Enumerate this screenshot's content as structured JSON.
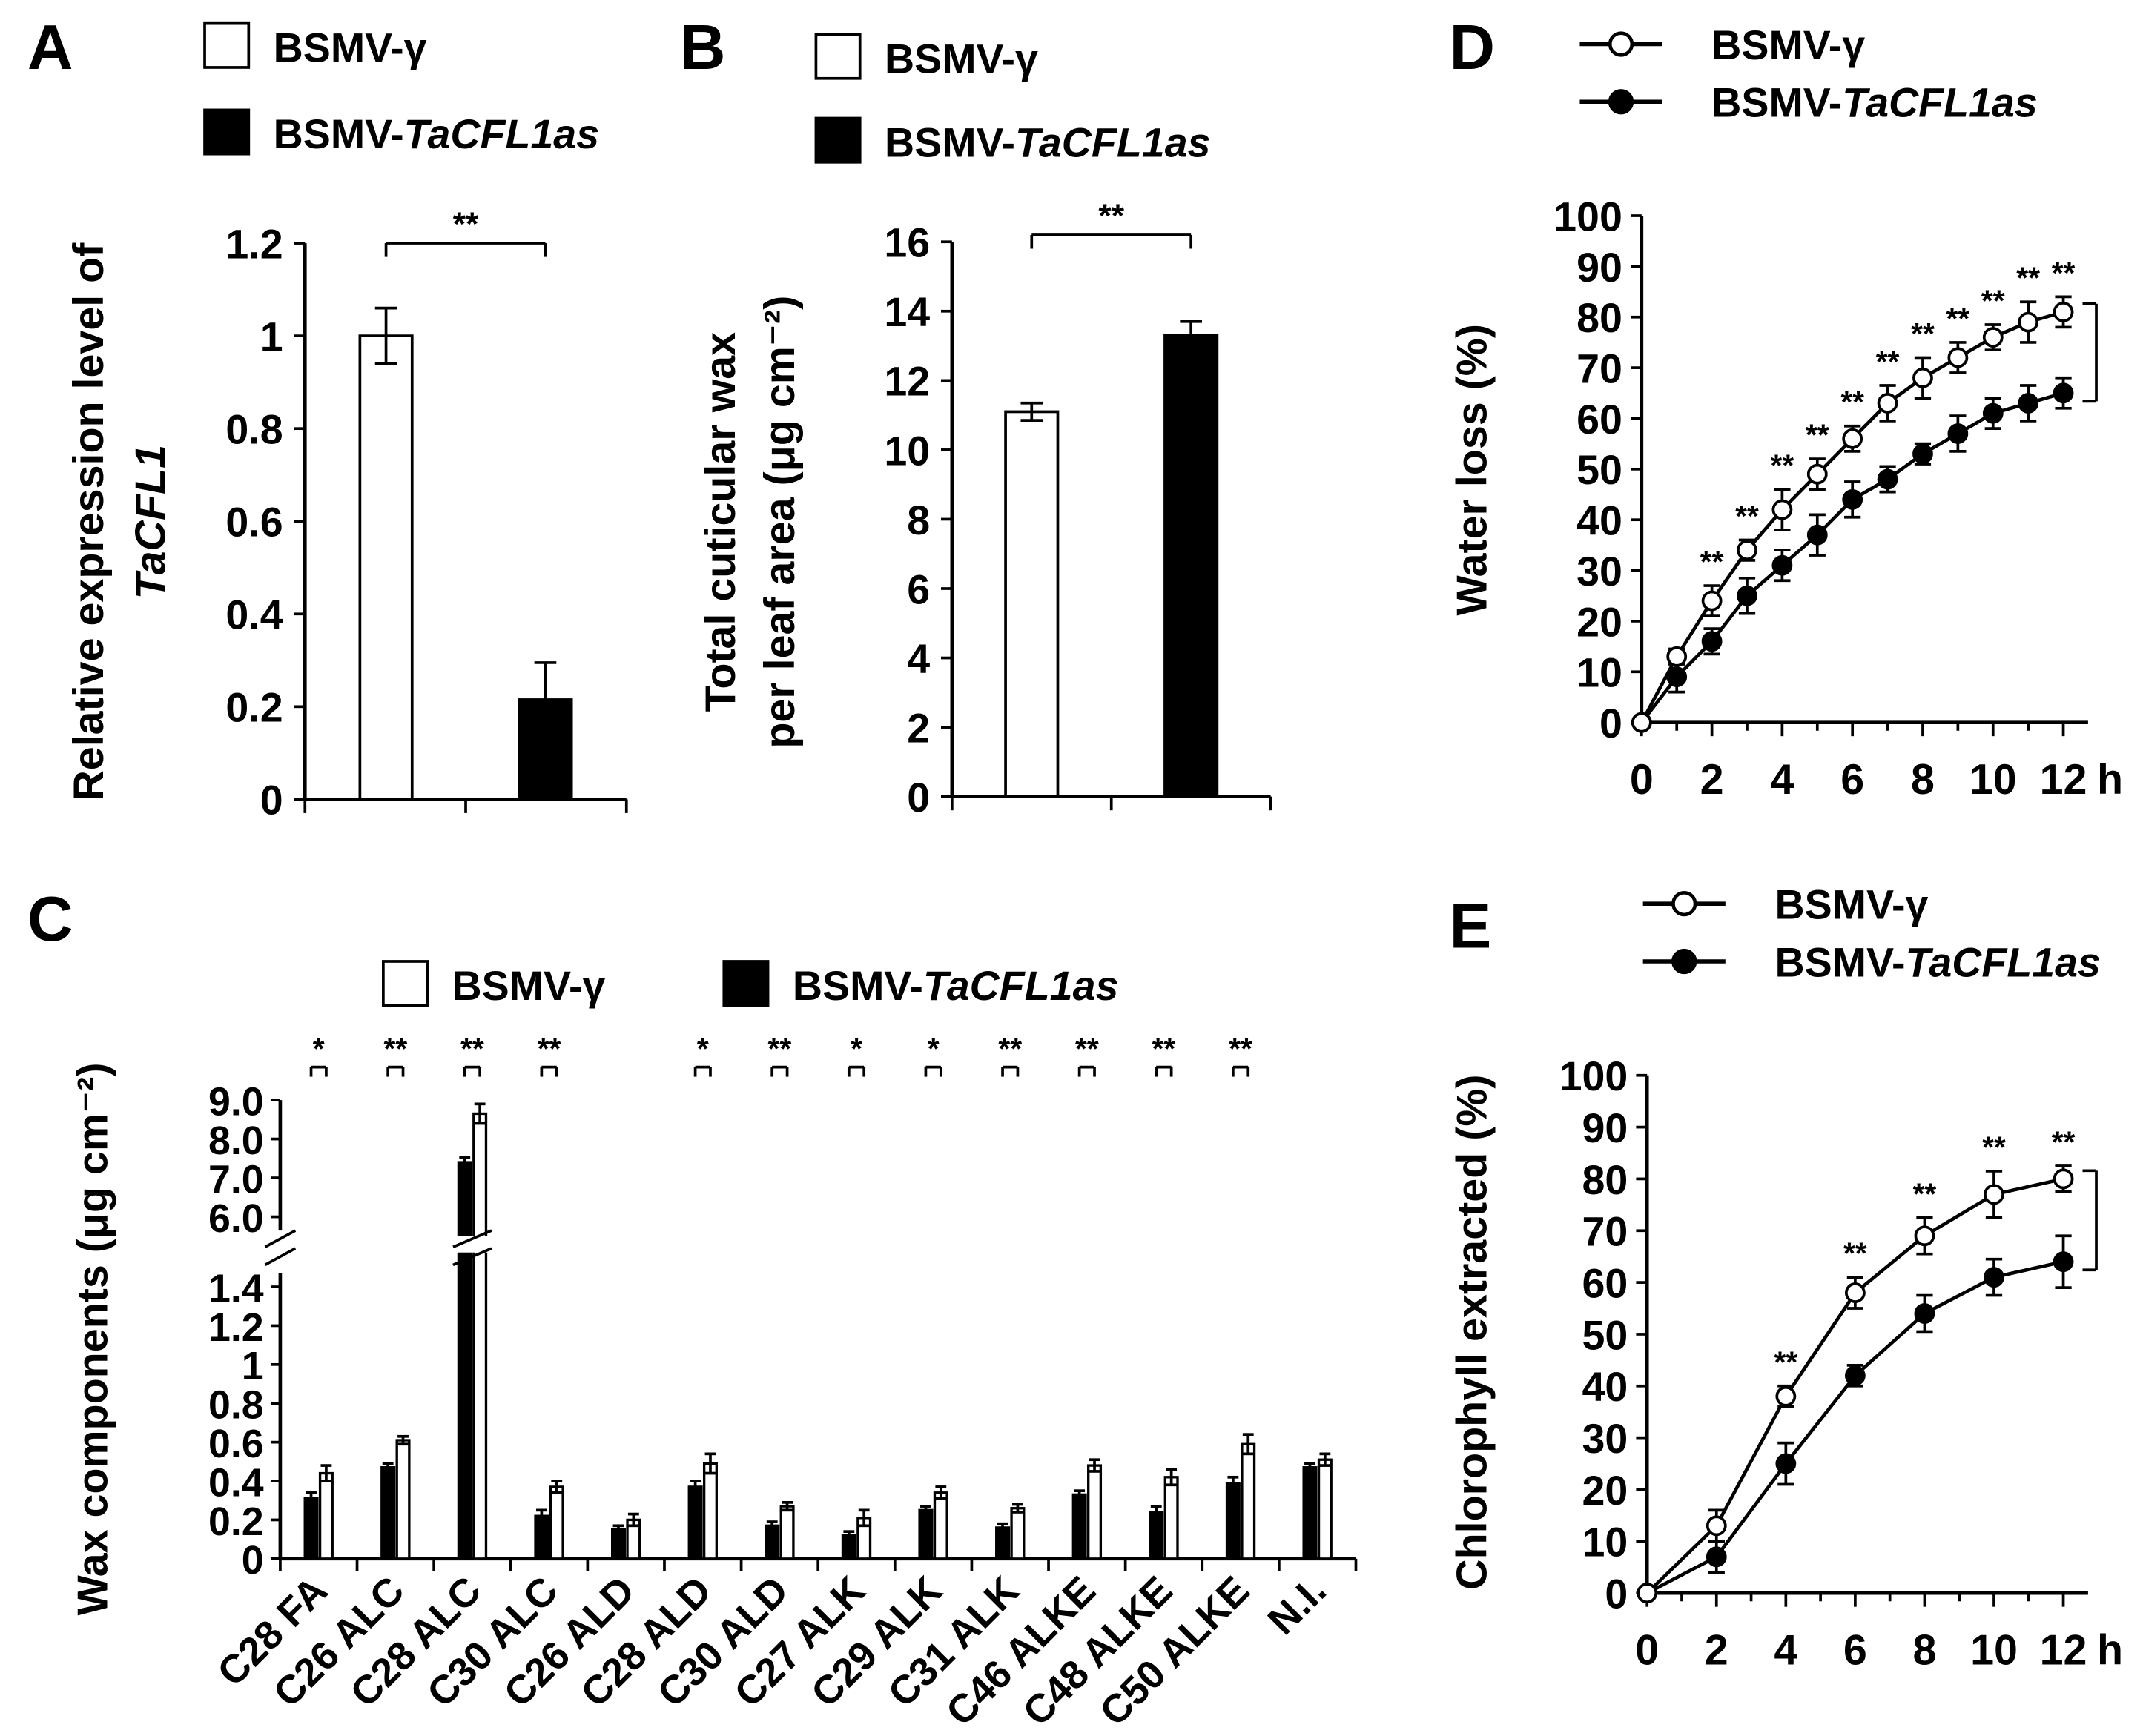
{
  "chart_data": [
    {
      "panel": "A",
      "type": "bar",
      "legend": [
        "BSMV-γ",
        "BSMV-TaCFL1as"
      ],
      "legend_placement": "top-left",
      "ylabel_line1": "Relative expression level of",
      "ylabel_line2": "TaCFL1",
      "ylim": [
        0,
        1.2
      ],
      "yticks": [
        "0",
        "0.2",
        "0.4",
        "0.6",
        "0.8",
        "1",
        "1.2"
      ],
      "series": [
        {
          "name": "BSMV-γ",
          "fill": "#ffffff",
          "values": [
            1.0
          ],
          "errors": [
            0.06
          ]
        },
        {
          "name": "BSMV-TaCFL1as",
          "fill": "#000000",
          "values": [
            0.215
          ],
          "errors": [
            0.08
          ]
        }
      ],
      "significance": "**"
    },
    {
      "panel": "B",
      "type": "bar",
      "legend": [
        "BSMV-γ",
        "BSMV-TaCFL1as"
      ],
      "legend_placement": "top-left",
      "ylabel_line1": "Total cuticular wax",
      "ylabel_line2": "per leaf area  (μg cm⁻²)",
      "ylim": [
        0,
        16
      ],
      "yticks": [
        "0",
        "2",
        "4",
        "6",
        "8",
        "10",
        "12",
        "14",
        "16"
      ],
      "series": [
        {
          "name": "BSMV-γ",
          "fill": "#ffffff",
          "values": [
            11.1
          ],
          "errors": [
            0.25
          ]
        },
        {
          "name": "BSMV-TaCFL1as",
          "fill": "#000000",
          "values": [
            13.3
          ],
          "errors": [
            0.4
          ]
        }
      ],
      "significance": "**"
    },
    {
      "panel": "C",
      "type": "bar",
      "legend": [
        "BSMV-γ",
        "BSMV-TaCFL1as"
      ],
      "legend_placement": "top",
      "ylabel": "Wax components (μg cm⁻²)",
      "ylim_lower": [
        0,
        1.4
      ],
      "ylim_upper": [
        6.0,
        9.0
      ],
      "yticks_lower": [
        "0",
        "0.2",
        "0.4",
        "0.6",
        "0.8",
        "1",
        "1.2",
        "1.4"
      ],
      "yticks_upper": [
        "6.0",
        "7.0",
        "8.0",
        "9.0"
      ],
      "axis_break": true,
      "categories": [
        "C28 FA",
        "C26 ALC",
        "C28 ALC",
        "C30 ALC",
        "C26 ALD",
        "C28 ALD",
        "C30 ALD",
        "C27 ALK",
        "C29 ALK",
        "C31 ALK",
        "C46 ALKE",
        "C48 ALKE",
        "C50 ALKE",
        "N.I."
      ],
      "series": [
        {
          "name": "BSMV-TaCFL1as",
          "fill": "#000000",
          "values": [
            0.31,
            0.47,
            7.4,
            0.22,
            0.15,
            0.37,
            0.17,
            0.12,
            0.25,
            0.16,
            0.33,
            0.24,
            0.39,
            0.47
          ],
          "errors": [
            0.03,
            0.02,
            0.12,
            0.03,
            0.02,
            0.03,
            0.02,
            0.02,
            0.02,
            0.02,
            0.02,
            0.03,
            0.03,
            0.02
          ]
        },
        {
          "name": "BSMV-γ",
          "fill": "#ffffff",
          "values": [
            0.44,
            0.61,
            8.65,
            0.37,
            0.2,
            0.49,
            0.27,
            0.21,
            0.34,
            0.26,
            0.48,
            0.42,
            0.59,
            0.51
          ],
          "errors": [
            0.04,
            0.02,
            0.25,
            0.03,
            0.03,
            0.05,
            0.02,
            0.04,
            0.03,
            0.02,
            0.03,
            0.04,
            0.05,
            0.03
          ]
        }
      ],
      "significance": [
        "*",
        "**",
        "**",
        "**",
        "",
        "*",
        "**",
        "*",
        "*",
        "**",
        "**",
        "**",
        "**",
        ""
      ]
    },
    {
      "panel": "D",
      "type": "line",
      "legend": [
        "BSMV-γ",
        "BSMV-TaCFL1as"
      ],
      "legend_placement": "top",
      "ylabel": "Water loss (%)",
      "xunit": "h",
      "ylim": [
        0,
        100
      ],
      "xlim": [
        0,
        12
      ],
      "yticks": [
        "0",
        "10",
        "20",
        "30",
        "40",
        "50",
        "60",
        "70",
        "80",
        "90",
        "100"
      ],
      "xticks": [
        "0",
        "2",
        "4",
        "6",
        "8",
        "10",
        "12"
      ],
      "x": [
        0,
        1,
        2,
        3,
        4,
        5,
        6,
        7,
        8,
        9,
        10,
        11,
        12
      ],
      "series": [
        {
          "name": "BSMV-γ",
          "marker": "open-circle",
          "values": [
            0,
            13,
            24,
            34,
            42,
            49,
            56,
            63,
            68,
            72,
            76,
            79,
            81
          ],
          "errors": [
            0,
            1.5,
            3,
            2,
            4,
            3,
            2.5,
            3.5,
            4,
            3,
            2.5,
            4,
            3
          ]
        },
        {
          "name": "BSMV-TaCFL1as",
          "marker": "filled-circle",
          "values": [
            0,
            9,
            16,
            25,
            31,
            37,
            44,
            48,
            53,
            57,
            61,
            63,
            65
          ],
          "errors": [
            0,
            3,
            2.5,
            3.5,
            3,
            4,
            3.5,
            2.5,
            2,
            3.5,
            3,
            3.5,
            3
          ]
        }
      ],
      "significance": [
        "",
        "",
        "**",
        "**",
        "**",
        "**",
        "**",
        "**",
        "**",
        "**",
        "**",
        "**",
        "**"
      ]
    },
    {
      "panel": "E",
      "type": "line",
      "legend": [
        "BSMV-γ",
        "BSMV-TaCFL1as"
      ],
      "legend_placement": "top",
      "ylabel": "Chlorophyll extracted (%)",
      "xunit": "h",
      "ylim": [
        0,
        100
      ],
      "xlim": [
        0,
        12
      ],
      "yticks": [
        "0",
        "10",
        "20",
        "30",
        "40",
        "50",
        "60",
        "70",
        "80",
        "90",
        "100"
      ],
      "xticks": [
        "0",
        "2",
        "4",
        "6",
        "8",
        "10",
        "12"
      ],
      "x": [
        0,
        2,
        4,
        6,
        8,
        10,
        12
      ],
      "series": [
        {
          "name": "BSMV-γ",
          "marker": "open-circle",
          "values": [
            0,
            13,
            38,
            58,
            69,
            77,
            80
          ],
          "errors": [
            0,
            3,
            2,
            3,
            3.5,
            4.5,
            2.5
          ]
        },
        {
          "name": "BSMV-TaCFL1as",
          "marker": "filled-circle",
          "values": [
            0,
            7,
            25,
            42,
            54,
            61,
            64
          ],
          "errors": [
            0,
            3,
            4,
            2,
            3.5,
            3.5,
            5
          ]
        }
      ],
      "significance": [
        "",
        "",
        "**",
        "**",
        "**",
        "**",
        "**"
      ]
    }
  ]
}
